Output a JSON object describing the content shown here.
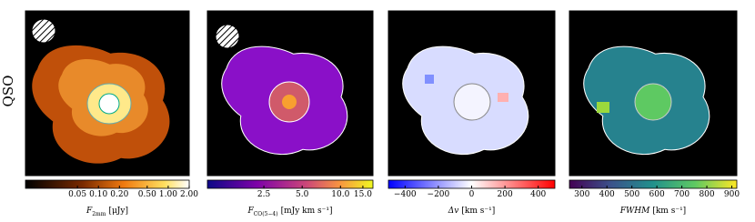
{
  "row_label": "QSO",
  "chart_data": [
    {
      "type": "image",
      "beam": true,
      "cbar_label": {
        "symbol": "F",
        "sub": "2mm",
        "unit": "[μJy]"
      },
      "scale": "log",
      "xlim": [
        0.009,
        2.0
      ],
      "xticks": [
        0.05,
        {
          "value": 0.1,
          "label": "0.10"
        },
        {
          "value": 0.2,
          "label": "0.20"
        },
        {
          "value": 0.5,
          "label": "0.50"
        },
        {
          "value": 1.0,
          "label": "1.00"
        },
        {
          "value": 2.0,
          "label": "2.00"
        }
      ]
    },
    {
      "type": "image",
      "beam": true,
      "cbar_label": {
        "symbol": "F",
        "sub": "CO(5−4)",
        "unit": "[mJy km s⁻¹]"
      },
      "scale": "log",
      "xlim": [
        0.9,
        18
      ],
      "xticks": [
        2.5,
        {
          "value": 5,
          "label": "5.0"
        },
        {
          "value": 10,
          "label": "10.0"
        },
        {
          "value": 15,
          "label": "15.0"
        }
      ]
    },
    {
      "type": "image",
      "beam": false,
      "cbar_label": {
        "symbol": "Δv",
        "sub": "",
        "unit": "[km s⁻¹]"
      },
      "scale": "linear",
      "xlim": [
        -500,
        500
      ],
      "xticks": [
        {
          "value": -400,
          "label": "−400"
        },
        {
          "value": -200,
          "label": "−200"
        },
        0,
        200,
        400
      ]
    },
    {
      "type": "image",
      "beam": false,
      "cbar_label": {
        "symbol": "FWHM",
        "sub": "",
        "unit": "[km s⁻¹]"
      },
      "scale": "linear",
      "xlim": [
        250,
        920
      ],
      "xticks": [
        300,
        400,
        500,
        600,
        700,
        800,
        900
      ]
    }
  ]
}
